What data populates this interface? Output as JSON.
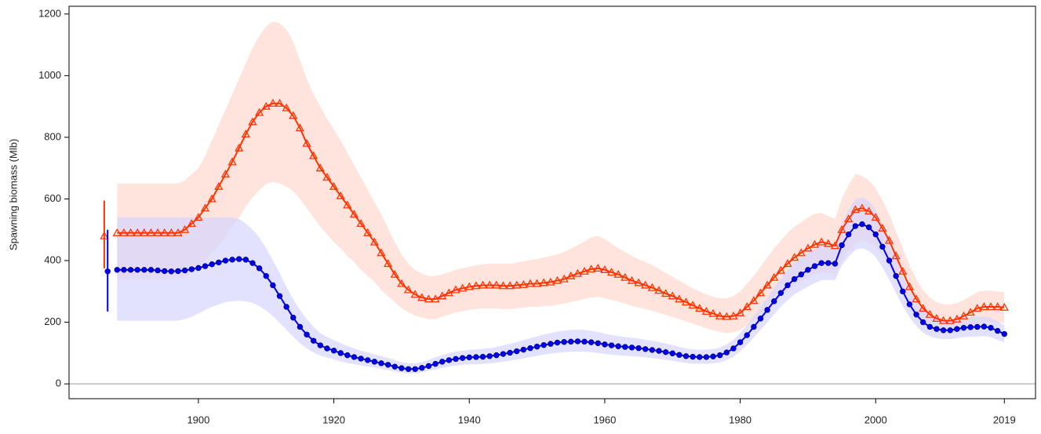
{
  "chart_data": {
    "type": "line",
    "ylabel": "Spawning biomass (Mlb)",
    "xlim": [
      1880.9,
      2023.6
    ],
    "ylim": [
      -48,
      1225
    ],
    "xticks": [
      1900,
      1920,
      1940,
      1960,
      1980,
      2000,
      2019
    ],
    "yticks": [
      0,
      200,
      400,
      600,
      800,
      1000,
      1200
    ],
    "reference_line": 0,
    "x": [
      1888,
      1889,
      1890,
      1891,
      1892,
      1893,
      1894,
      1895,
      1896,
      1897,
      1898,
      1899,
      1900,
      1901,
      1902,
      1903,
      1904,
      1905,
      1906,
      1907,
      1908,
      1909,
      1910,
      1911,
      1912,
      1913,
      1914,
      1915,
      1916,
      1917,
      1918,
      1919,
      1920,
      1921,
      1922,
      1923,
      1924,
      1925,
      1926,
      1927,
      1928,
      1929,
      1930,
      1931,
      1932,
      1933,
      1934,
      1935,
      1936,
      1937,
      1938,
      1939,
      1940,
      1941,
      1942,
      1943,
      1944,
      1945,
      1946,
      1947,
      1948,
      1949,
      1950,
      1951,
      1952,
      1953,
      1954,
      1955,
      1956,
      1957,
      1958,
      1959,
      1960,
      1961,
      1962,
      1963,
      1964,
      1965,
      1966,
      1967,
      1968,
      1969,
      1970,
      1971,
      1972,
      1973,
      1974,
      1975,
      1976,
      1977,
      1978,
      1979,
      1980,
      1981,
      1982,
      1983,
      1984,
      1985,
      1986,
      1987,
      1988,
      1989,
      1990,
      1991,
      1992,
      1993,
      1994,
      1995,
      1996,
      1997,
      1998,
      1999,
      2000,
      2001,
      2002,
      2003,
      2004,
      2005,
      2006,
      2007,
      2008,
      2009,
      2010,
      2011,
      2012,
      2013,
      2014,
      2015,
      2016,
      2017,
      2018,
      2019
    ],
    "series": [
      {
        "color": "#ff3300",
        "band_color": "#ffd9cf",
        "marker": "triangle",
        "values": [
          490,
          490,
          490,
          490,
          490,
          490,
          490,
          490,
          490,
          490,
          500,
          520,
          540,
          570,
          600,
          640,
          680,
          720,
          765,
          810,
          850,
          880,
          900,
          910,
          910,
          895,
          870,
          830,
          780,
          740,
          700,
          670,
          640,
          610,
          580,
          550,
          520,
          490,
          460,
          425,
          390,
          355,
          325,
          305,
          290,
          280,
          275,
          275,
          285,
          295,
          305,
          310,
          315,
          318,
          320,
          320,
          320,
          318,
          318,
          320,
          322,
          325,
          325,
          328,
          330,
          335,
          340,
          350,
          358,
          365,
          372,
          375,
          370,
          362,
          355,
          345,
          335,
          328,
          320,
          312,
          303,
          293,
          285,
          275,
          265,
          255,
          245,
          235,
          228,
          220,
          218,
          220,
          230,
          250,
          270,
          295,
          320,
          345,
          368,
          390,
          410,
          425,
          440,
          452,
          460,
          455,
          448,
          500,
          535,
          565,
          570,
          560,
          540,
          505,
          465,
          415,
          365,
          315,
          275,
          245,
          225,
          212,
          205,
          205,
          210,
          220,
          232,
          245,
          250,
          250,
          250,
          248
        ],
        "upper": [
          650,
          650,
          650,
          650,
          650,
          650,
          650,
          650,
          650,
          650,
          660,
          680,
          700,
          740,
          790,
          840,
          890,
          940,
          990,
          1040,
          1090,
          1130,
          1160,
          1175,
          1170,
          1150,
          1110,
          1050,
          990,
          940,
          900,
          860,
          825,
          790,
          750,
          710,
          670,
          630,
          590,
          550,
          505,
          460,
          420,
          390,
          370,
          358,
          350,
          350,
          355,
          362,
          370,
          375,
          380,
          385,
          388,
          390,
          390,
          390,
          390,
          393,
          398,
          402,
          405,
          410,
          415,
          420,
          428,
          438,
          450,
          462,
          475,
          480,
          470,
          455,
          440,
          428,
          415,
          405,
          395,
          385,
          373,
          360,
          348,
          335,
          322,
          310,
          300,
          290,
          283,
          278,
          278,
          285,
          300,
          325,
          350,
          380,
          410,
          440,
          465,
          490,
          510,
          525,
          540,
          552,
          555,
          545,
          535,
          600,
          645,
          680,
          675,
          660,
          635,
          595,
          550,
          495,
          440,
          385,
          340,
          305,
          280,
          265,
          258,
          258,
          262,
          272,
          285,
          298,
          302,
          302,
          300,
          298
        ],
        "lower": [
          340,
          340,
          340,
          340,
          340,
          340,
          340,
          340,
          340,
          340,
          345,
          360,
          380,
          400,
          425,
          450,
          480,
          510,
          540,
          575,
          605,
          630,
          648,
          655,
          650,
          640,
          625,
          600,
          570,
          540,
          510,
          485,
          460,
          440,
          415,
          395,
          370,
          350,
          330,
          305,
          285,
          265,
          245,
          232,
          222,
          215,
          210,
          210,
          218,
          225,
          232,
          236,
          240,
          243,
          245,
          245,
          245,
          243,
          243,
          245,
          247,
          250,
          250,
          252,
          253,
          257,
          260,
          266,
          270,
          275,
          280,
          282,
          278,
          272,
          267,
          260,
          253,
          248,
          243,
          237,
          230,
          223,
          217,
          210,
          203,
          195,
          188,
          180,
          174,
          168,
          165,
          167,
          175,
          190,
          205,
          225,
          245,
          265,
          285,
          305,
          320,
          335,
          345,
          355,
          362,
          360,
          355,
          400,
          430,
          455,
          465,
          460,
          445,
          415,
          385,
          340,
          298,
          255,
          222,
          197,
          180,
          168,
          162,
          162,
          165,
          172,
          182,
          195,
          200,
          200,
          200,
          198
        ],
        "initial": {
          "x": 1886.1,
          "value": 480,
          "lower": 375,
          "upper": 595
        }
      },
      {
        "color": "#0000ee",
        "band_color": "#d6d6ff",
        "marker": "circle",
        "values": [
          370,
          370,
          370,
          370,
          370,
          370,
          368,
          366,
          365,
          366,
          368,
          372,
          376,
          382,
          388,
          394,
          400,
          403,
          405,
          403,
          392,
          375,
          350,
          320,
          285,
          250,
          215,
          185,
          160,
          140,
          125,
          115,
          108,
          100,
          93,
          87,
          82,
          77,
          72,
          67,
          62,
          56,
          51,
          48,
          48,
          52,
          58,
          65,
          72,
          77,
          81,
          84,
          86,
          87,
          88,
          90,
          93,
          97,
          101,
          106,
          111,
          116,
          121,
          126,
          130,
          134,
          136,
          137,
          138,
          137,
          135,
          132,
          128,
          125,
          122,
          120,
          118,
          116,
          113,
          110,
          107,
          103,
          99,
          94,
          90,
          88,
          87,
          87,
          89,
          93,
          102,
          115,
          135,
          158,
          185,
          212,
          240,
          268,
          295,
          320,
          340,
          355,
          370,
          382,
          392,
          392,
          390,
          450,
          485,
          512,
          518,
          508,
          485,
          445,
          400,
          350,
          300,
          258,
          225,
          200,
          185,
          178,
          174,
          174,
          178,
          182,
          184,
          185,
          186,
          182,
          172,
          162
        ],
        "upper": [
          540,
          540,
          540,
          540,
          540,
          540,
          540,
          540,
          540,
          540,
          540,
          540,
          540,
          540,
          540,
          540,
          540,
          540,
          535,
          520,
          500,
          475,
          440,
          400,
          360,
          315,
          275,
          240,
          210,
          185,
          165,
          152,
          142,
          132,
          123,
          115,
          108,
          102,
          96,
          90,
          84,
          77,
          71,
          67,
          67,
          71,
          78,
          86,
          94,
          100,
          105,
          108,
          111,
          112,
          114,
          116,
          120,
          125,
          130,
          136,
          142,
          148,
          154,
          160,
          165,
          170,
          173,
          175,
          176,
          175,
          172,
          168,
          163,
          159,
          155,
          152,
          150,
          147,
          143,
          140,
          136,
          131,
          126,
          120,
          115,
          112,
          111,
          111,
          113,
          118,
          128,
          143,
          165,
          190,
          220,
          250,
          280,
          312,
          342,
          370,
          392,
          408,
          425,
          438,
          448,
          448,
          445,
          520,
          565,
          598,
          605,
          593,
          565,
          518,
          466,
          408,
          350,
          302,
          264,
          236,
          218,
          210,
          205,
          205,
          210,
          214,
          217,
          218,
          219,
          214,
          203,
          192
        ],
        "lower": [
          205,
          205,
          205,
          205,
          205,
          205,
          205,
          205,
          205,
          205,
          210,
          218,
          228,
          240,
          250,
          258,
          265,
          268,
          270,
          268,
          262,
          252,
          238,
          220,
          198,
          176,
          152,
          132,
          115,
          102,
          92,
          85,
          79,
          73,
          68,
          64,
          60,
          56,
          53,
          49,
          45,
          40,
          36,
          34,
          34,
          37,
          42,
          47,
          52,
          56,
          59,
          62,
          63,
          64,
          65,
          67,
          69,
          72,
          75,
          79,
          83,
          87,
          91,
          95,
          98,
          101,
          103,
          104,
          105,
          104,
          103,
          100,
          97,
          95,
          93,
          91,
          90,
          88,
          86,
          83,
          81,
          78,
          75,
          71,
          68,
          66,
          65,
          65,
          67,
          70,
          77,
          88,
          106,
          127,
          150,
          175,
          200,
          225,
          250,
          272,
          290,
          303,
          316,
          327,
          336,
          337,
          336,
          385,
          412,
          435,
          440,
          432,
          412,
          378,
          338,
          295,
          252,
          216,
          188,
          166,
          154,
          148,
          145,
          145,
          148,
          152,
          153,
          154,
          155,
          152,
          143,
          134
        ],
        "initial": {
          "x": 1886.6,
          "value": 365,
          "lower": 235,
          "upper": 500
        }
      }
    ]
  }
}
